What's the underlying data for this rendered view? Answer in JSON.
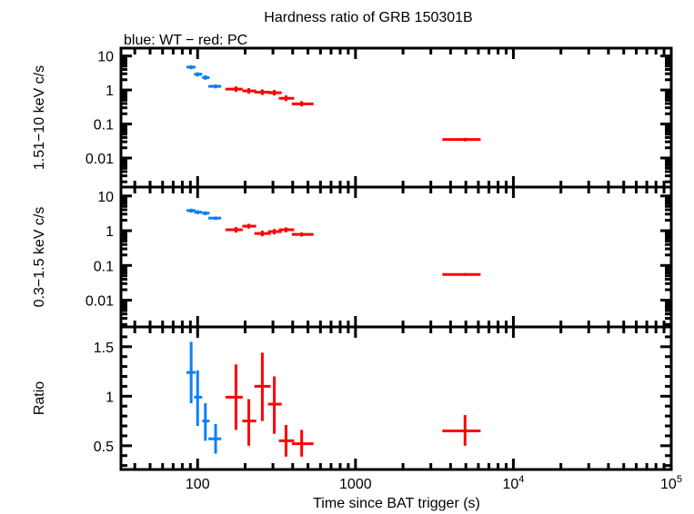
{
  "chart_data": {
    "type": "scatter",
    "title": "Hardness ratio of GRB 150301B",
    "subtitle": "blue: WT − red: PC",
    "xlabel": "Time since BAT trigger (s)",
    "xscale": "log",
    "xlim": [
      32.7,
      100000
    ],
    "xticks": [
      {
        "v": 100,
        "l": "100"
      },
      {
        "v": 1000,
        "l": "1000"
      },
      {
        "v": 10000,
        "l": "10",
        "e": "4"
      },
      {
        "v": 100000,
        "l": "10",
        "e": "5"
      }
    ],
    "colors": {
      "WT": "#0a7ff5",
      "PC": "#ff0000"
    },
    "panels": [
      {
        "ylabel": "1.51−10 keV c/s",
        "yscale": "log",
        "ylim": [
          0.0014,
          17
        ],
        "yticks": [
          {
            "v": 10,
            "l": "10"
          },
          {
            "v": 1,
            "l": "1"
          },
          {
            "v": 0.1,
            "l": "0.1"
          },
          {
            "v": 0.01,
            "l": "0.01"
          }
        ],
        "points": [
          {
            "m": "WT",
            "x": 91,
            "x0": 85,
            "x1": 97,
            "y": 4.7,
            "y0": 4.1,
            "y1": 5.3
          },
          {
            "m": "WT",
            "x": 100,
            "x0": 95,
            "x1": 107,
            "y": 2.9,
            "y0": 2.5,
            "y1": 3.3
          },
          {
            "m": "WT",
            "x": 112,
            "x0": 107,
            "x1": 119,
            "y": 2.3,
            "y0": 2.0,
            "y1": 2.7
          },
          {
            "m": "WT",
            "x": 130,
            "x0": 117,
            "x1": 141,
            "y": 1.28,
            "y0": 1.12,
            "y1": 1.45
          },
          {
            "m": "PC",
            "x": 175,
            "x0": 150,
            "x1": 193,
            "y": 1.06,
            "y0": 0.88,
            "y1": 1.27
          },
          {
            "m": "PC",
            "x": 211,
            "x0": 192,
            "x1": 235,
            "y": 0.94,
            "y0": 0.78,
            "y1": 1.13
          },
          {
            "m": "PC",
            "x": 257,
            "x0": 229,
            "x1": 290,
            "y": 0.86,
            "y0": 0.71,
            "y1": 1.04
          },
          {
            "m": "PC",
            "x": 306,
            "x0": 279,
            "x1": 341,
            "y": 0.83,
            "y0": 0.69,
            "y1": 1.0
          },
          {
            "m": "PC",
            "x": 363,
            "x0": 327,
            "x1": 409,
            "y": 0.57,
            "y0": 0.47,
            "y1": 0.69
          },
          {
            "m": "PC",
            "x": 456,
            "x0": 395,
            "x1": 542,
            "y": 0.39,
            "y0": 0.33,
            "y1": 0.47
          },
          {
            "m": "PC",
            "x": 4940,
            "x0": 3550,
            "x1": 6200,
            "y": 0.035,
            "y0": 0.031,
            "y1": 0.039
          }
        ]
      },
      {
        "ylabel": "0.3−1.5 keV c/s",
        "yscale": "log",
        "ylim": [
          0.0017,
          18
        ],
        "yticks": [
          {
            "v": 10,
            "l": "10"
          },
          {
            "v": 1,
            "l": "1"
          },
          {
            "v": 0.1,
            "l": "0.1"
          },
          {
            "v": 0.01,
            "l": "0.01"
          }
        ],
        "points": [
          {
            "m": "WT",
            "x": 91,
            "x0": 85,
            "x1": 97,
            "y": 3.8,
            "y0": 3.3,
            "y1": 4.3
          },
          {
            "m": "WT",
            "x": 100,
            "x0": 95,
            "x1": 107,
            "y": 3.4,
            "y0": 3.0,
            "y1": 3.9
          },
          {
            "m": "WT",
            "x": 112,
            "x0": 107,
            "x1": 119,
            "y": 3.2,
            "y0": 2.8,
            "y1": 3.6
          },
          {
            "m": "WT",
            "x": 130,
            "x0": 117,
            "x1": 141,
            "y": 2.3,
            "y0": 2.05,
            "y1": 2.55
          },
          {
            "m": "PC",
            "x": 175,
            "x0": 150,
            "x1": 193,
            "y": 1.06,
            "y0": 0.88,
            "y1": 1.27
          },
          {
            "m": "PC",
            "x": 211,
            "x0": 192,
            "x1": 235,
            "y": 1.35,
            "y0": 1.15,
            "y1": 1.58
          },
          {
            "m": "PC",
            "x": 257,
            "x0": 229,
            "x1": 290,
            "y": 0.83,
            "y0": 0.69,
            "y1": 1.0
          },
          {
            "m": "PC",
            "x": 306,
            "x0": 279,
            "x1": 341,
            "y": 0.94,
            "y0": 0.78,
            "y1": 1.12
          },
          {
            "m": "PC",
            "x": 363,
            "x0": 327,
            "x1": 409,
            "y": 1.06,
            "y0": 0.9,
            "y1": 1.24
          },
          {
            "m": "PC",
            "x": 456,
            "x0": 395,
            "x1": 542,
            "y": 0.78,
            "y0": 0.68,
            "y1": 0.89
          },
          {
            "m": "PC",
            "x": 4940,
            "x0": 3550,
            "x1": 6200,
            "y": 0.055,
            "y0": 0.05,
            "y1": 0.06
          }
        ]
      },
      {
        "ylabel": "Ratio",
        "yscale": "linear",
        "ylim": [
          0.26,
          1.7
        ],
        "yticks": [
          {
            "v": 1.5,
            "l": "1.5"
          },
          {
            "v": 1,
            "l": "1"
          },
          {
            "v": 0.5,
            "l": "0.5"
          }
        ],
        "points": [
          {
            "m": "WT",
            "x": 91,
            "x0": 85,
            "x1": 97,
            "y": 1.24,
            "y0": 0.93,
            "y1": 1.55
          },
          {
            "m": "WT",
            "x": 100,
            "x0": 95,
            "x1": 107,
            "y": 0.99,
            "y0": 0.7,
            "y1": 1.26
          },
          {
            "m": "WT",
            "x": 112,
            "x0": 107,
            "x1": 119,
            "y": 0.75,
            "y0": 0.55,
            "y1": 0.93
          },
          {
            "m": "WT",
            "x": 130,
            "x0": 117,
            "x1": 141,
            "y": 0.57,
            "y0": 0.42,
            "y1": 0.72
          },
          {
            "m": "PC",
            "x": 175,
            "x0": 150,
            "x1": 193,
            "y": 0.99,
            "y0": 0.66,
            "y1": 1.32
          },
          {
            "m": "PC",
            "x": 211,
            "x0": 192,
            "x1": 235,
            "y": 0.75,
            "y0": 0.5,
            "y1": 0.97
          },
          {
            "m": "PC",
            "x": 257,
            "x0": 229,
            "x1": 290,
            "y": 1.1,
            "y0": 0.75,
            "y1": 1.44
          },
          {
            "m": "PC",
            "x": 306,
            "x0": 279,
            "x1": 341,
            "y": 0.92,
            "y0": 0.62,
            "y1": 1.2
          },
          {
            "m": "PC",
            "x": 363,
            "x0": 327,
            "x1": 409,
            "y": 0.55,
            "y0": 0.39,
            "y1": 0.71
          },
          {
            "m": "PC",
            "x": 456,
            "x0": 395,
            "x1": 542,
            "y": 0.52,
            "y0": 0.39,
            "y1": 0.66
          },
          {
            "m": "PC",
            "x": 4940,
            "x0": 3550,
            "x1": 6200,
            "y": 0.65,
            "y0": 0.5,
            "y1": 0.81
          }
        ]
      }
    ]
  }
}
